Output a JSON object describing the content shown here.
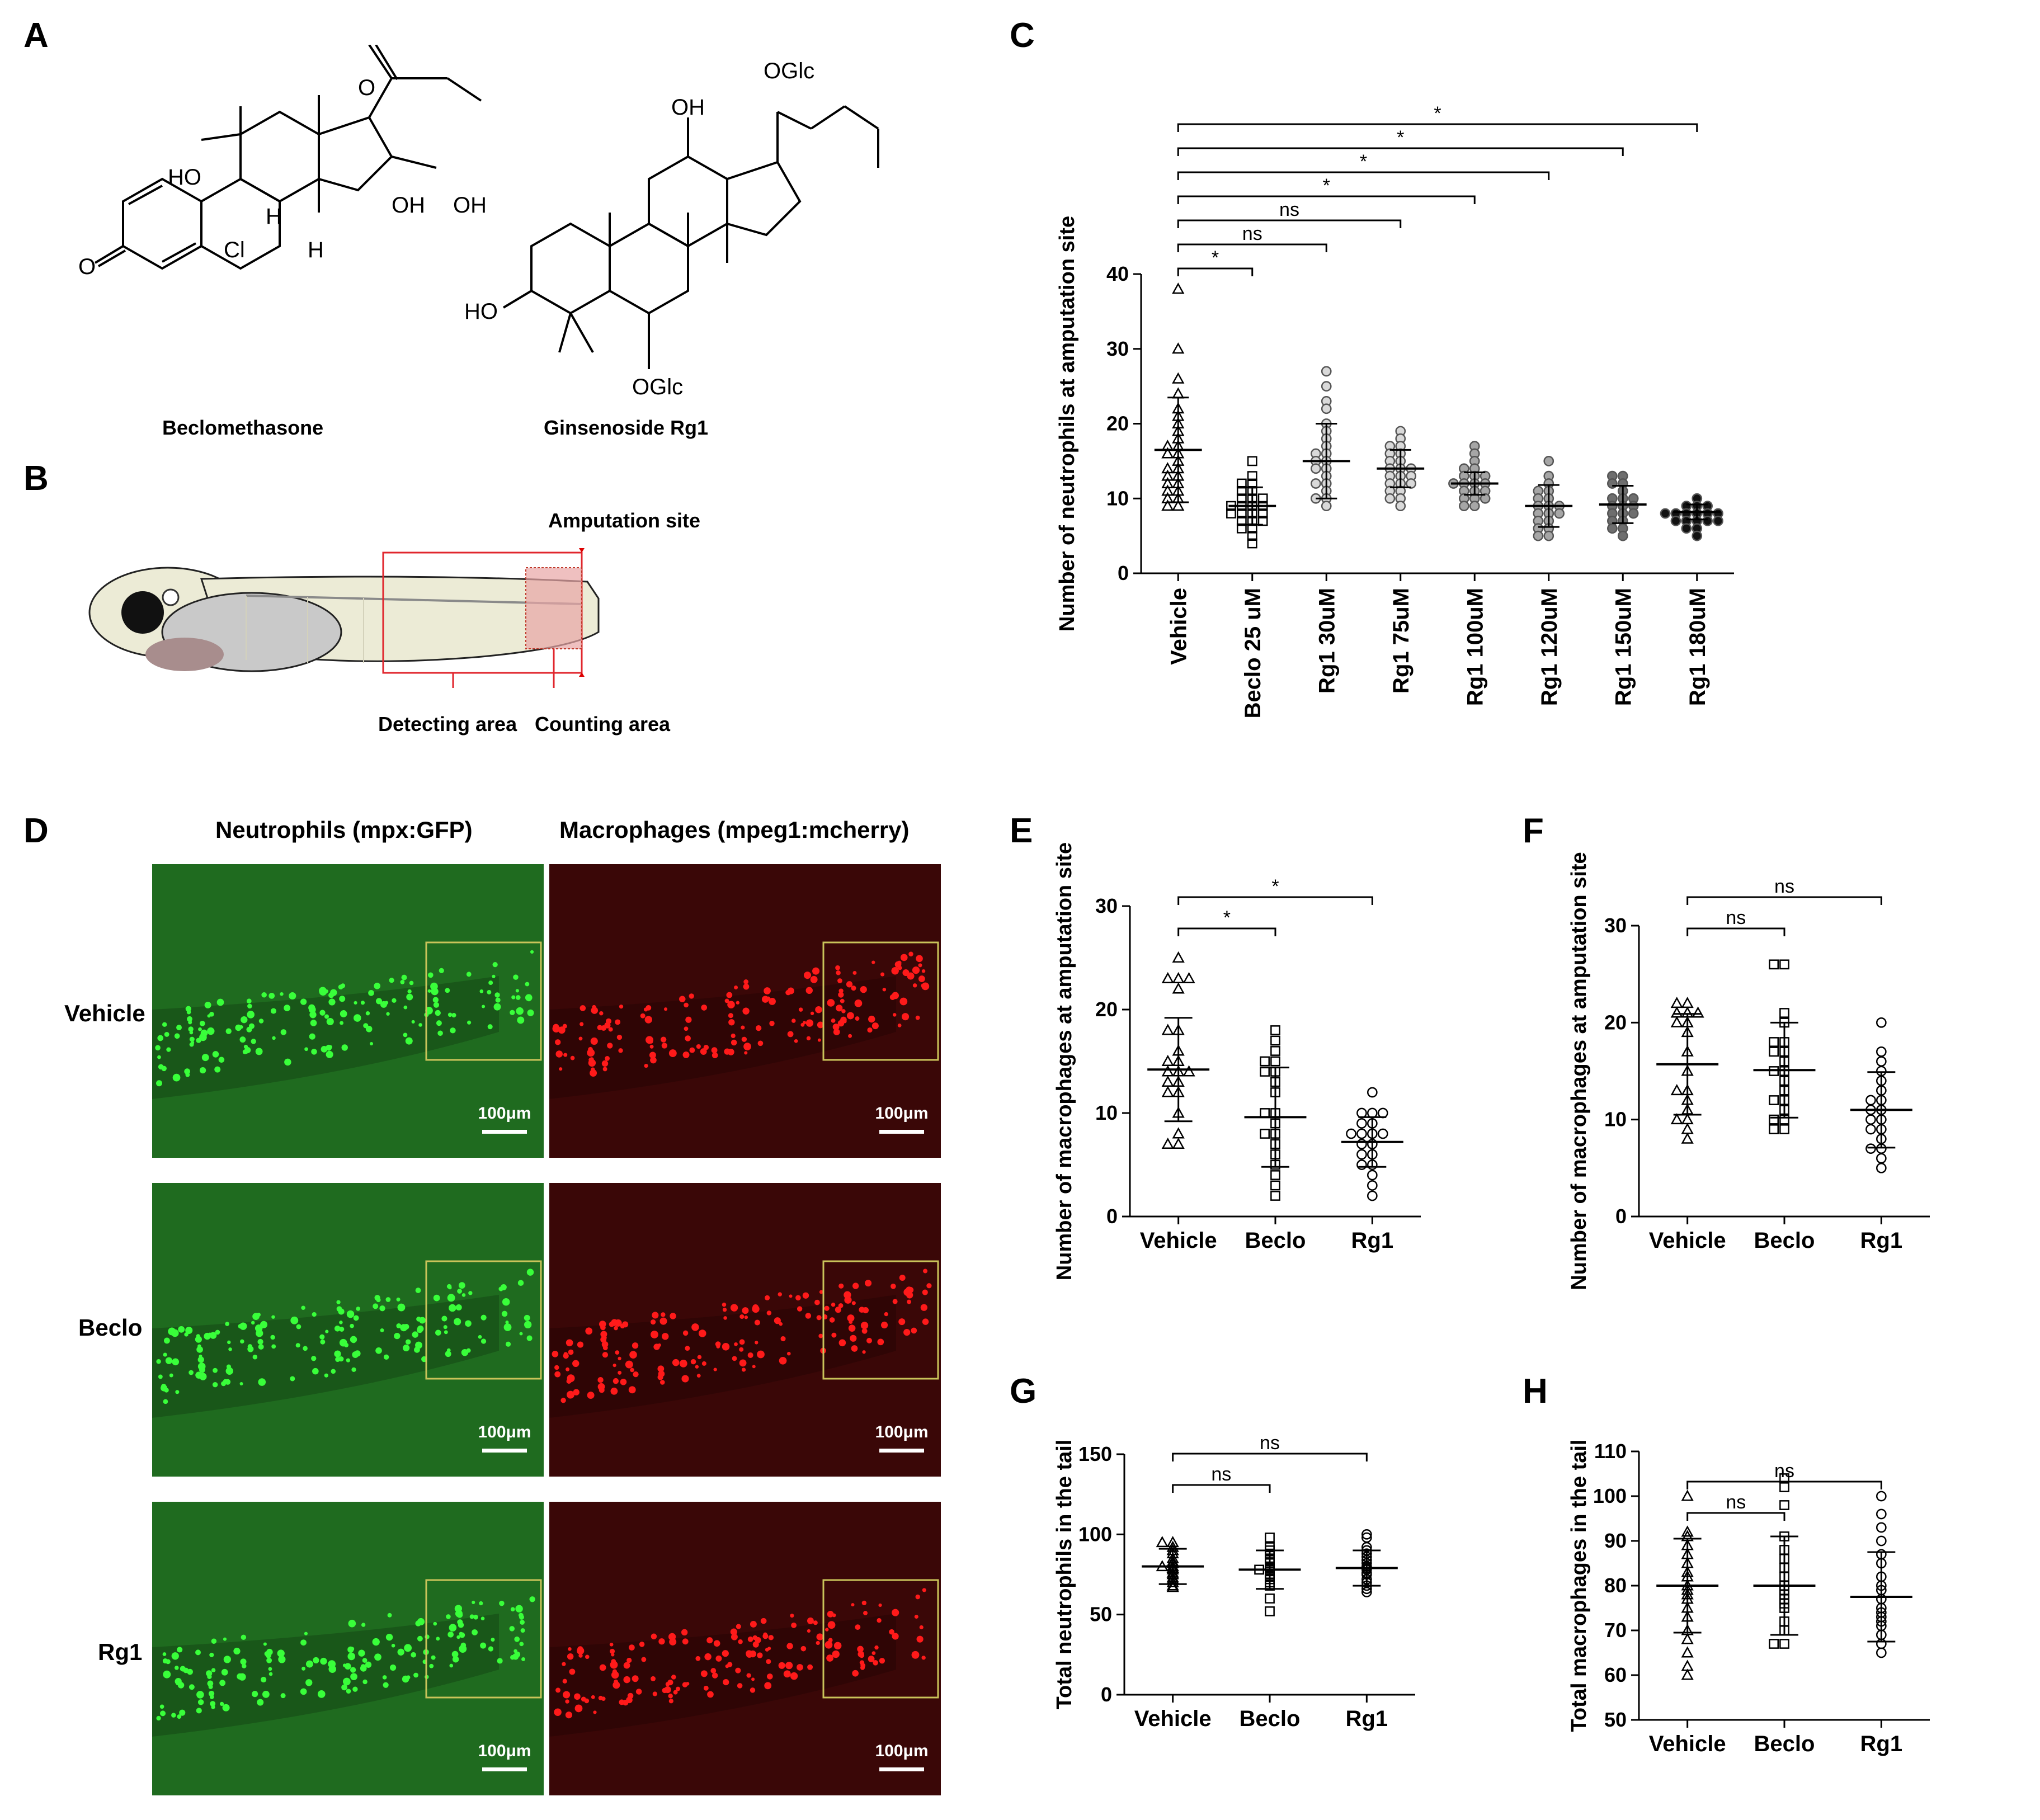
{
  "panels": {
    "A": "A",
    "B": "B",
    "C": "C",
    "D": "D",
    "E": "E",
    "F": "F",
    "G": "G",
    "H": "H"
  },
  "panel_a": {
    "compound_1": "Beclomethasone",
    "compound_2": "Ginsenoside Rg1",
    "atom_labels_1": [
      "HO",
      "OH",
      "OH",
      "O",
      "O",
      "H",
      "H",
      "Cl"
    ],
    "atom_labels_2": [
      "OGlc",
      "OH",
      "HO",
      "OGlc"
    ]
  },
  "panel_b": {
    "amputation_site": "Amputation site",
    "detecting_area": "Detecting area",
    "counting_area": "Counting area"
  },
  "panel_d": {
    "header_green": "Neutrophils (mpx:GFP)",
    "header_red": "Macrophages (mpeg1:mcherry)",
    "rows": [
      "Vehicle",
      "Beclo",
      "Rg1"
    ],
    "scale_bar": "100μm",
    "colors": {
      "green_bg": "#1f6b1f",
      "red_bg": "#3a0707",
      "box": "#c9c35a"
    }
  },
  "chart_data": [
    {
      "panel": "C",
      "type": "scatter",
      "ylabel": "Number of neutrophils at amputation site",
      "ylim": [
        0,
        40
      ],
      "yticks": [
        0,
        10,
        20,
        30,
        40
      ],
      "categories": [
        "Vehicle",
        "Beclo 25 uM",
        "Rg1 30uM",
        "Rg1 75uM",
        "Rg1 100uM",
        "Rg1 120uM",
        "Rg1 150uM",
        "Rg1 180uM"
      ],
      "marker_styles": [
        "triangle-open",
        "square-open",
        "circle-lightgray",
        "circle-lightgray",
        "circle-gray",
        "circle-gray",
        "circle-darkgray",
        "circle-black"
      ],
      "mean": [
        16.5,
        9,
        15,
        14,
        12,
        9,
        9.2,
        8.2
      ],
      "sd": [
        7,
        2.5,
        5,
        2.5,
        1.5,
        2.8,
        2.5,
        1
      ],
      "points": [
        [
          38,
          30,
          26,
          24,
          22,
          21,
          20,
          19,
          18,
          17,
          17,
          16,
          16,
          15,
          14,
          14,
          13,
          13,
          12,
          12,
          11,
          11,
          10,
          10,
          9,
          9
        ],
        [
          15,
          13,
          12,
          12,
          11,
          11,
          10,
          10,
          10,
          9,
          9,
          9,
          9,
          8,
          8,
          8,
          8,
          7,
          7,
          7,
          6,
          6,
          5,
          4
        ],
        [
          27,
          25,
          23,
          22,
          20,
          19,
          18,
          17,
          16,
          16,
          15,
          15,
          14,
          14,
          13,
          12,
          12,
          11,
          10,
          10,
          9
        ],
        [
          19,
          18,
          17,
          17,
          16,
          16,
          15,
          15,
          14,
          14,
          14,
          13,
          13,
          13,
          12,
          12,
          12,
          11,
          11,
          10,
          10,
          9
        ],
        [
          17,
          16,
          15,
          14,
          14,
          13,
          13,
          13,
          12,
          12,
          12,
          12,
          11,
          11,
          11,
          10,
          10,
          10,
          9,
          9
        ],
        [
          15,
          13,
          12,
          11,
          11,
          10,
          10,
          9,
          9,
          9,
          8,
          8,
          8,
          7,
          7,
          6,
          6,
          5,
          5
        ],
        [
          13,
          13,
          12,
          12,
          11,
          10,
          10,
          10,
          9,
          9,
          9,
          8,
          8,
          8,
          7,
          7,
          6,
          6,
          5
        ],
        [
          10,
          9,
          9,
          9,
          8,
          8,
          8,
          8,
          8,
          8,
          7,
          7,
          7,
          7,
          7,
          6,
          6,
          5
        ]
      ],
      "comparisons": [
        {
          "from": 0,
          "to": 1,
          "label": "*"
        },
        {
          "from": 0,
          "to": 2,
          "label": "ns"
        },
        {
          "from": 0,
          "to": 3,
          "label": "ns"
        },
        {
          "from": 0,
          "to": 4,
          "label": "*"
        },
        {
          "from": 0,
          "to": 5,
          "label": "*"
        },
        {
          "from": 0,
          "to": 6,
          "label": "*"
        },
        {
          "from": 0,
          "to": 7,
          "label": "*"
        }
      ]
    },
    {
      "panel": "E",
      "type": "scatter",
      "ylabel": "Number of macrophages at amputation site",
      "ylim": [
        0,
        30
      ],
      "yticks": [
        0,
        10,
        20,
        30
      ],
      "categories": [
        "Vehicle",
        "Beclo",
        "Rg1"
      ],
      "marker_styles": [
        "triangle-open",
        "square-open",
        "circle-open"
      ],
      "mean": [
        14.2,
        9.6,
        7.2
      ],
      "sd": [
        5,
        4.8,
        2.4
      ],
      "points": [
        [
          25,
          23,
          23,
          23,
          22,
          18,
          18,
          16,
          15,
          15,
          14,
          14,
          14,
          13,
          13,
          12,
          12,
          10,
          8,
          7,
          7
        ],
        [
          18,
          17,
          16,
          15,
          15,
          14,
          14,
          13,
          12,
          10,
          10,
          9,
          8,
          8,
          7,
          6,
          5,
          4,
          3,
          2
        ],
        [
          12,
          10,
          10,
          10,
          9,
          9,
          8,
          8,
          8,
          8,
          7,
          7,
          6,
          6,
          5,
          5,
          4,
          3,
          2
        ]
      ],
      "comparisons": [
        {
          "from": 0,
          "to": 1,
          "label": "*"
        },
        {
          "from": 0,
          "to": 2,
          "label": "*"
        }
      ]
    },
    {
      "panel": "F",
      "type": "scatter",
      "ylabel": "Number of macrophages at amputation site",
      "ylim": [
        0,
        30
      ],
      "yticks": [
        0,
        10,
        20,
        30
      ],
      "categories": [
        "Vehicle",
        "Beclo",
        "Rg1"
      ],
      "marker_styles": [
        "triangle-open",
        "square-open",
        "circle-open"
      ],
      "mean": [
        15.7,
        15.1,
        11
      ],
      "sd": [
        5.2,
        4.9,
        3.9
      ],
      "points": [
        [
          22,
          22,
          21,
          21,
          21,
          20,
          20,
          19,
          17,
          15,
          13,
          13,
          12,
          11,
          10,
          10,
          9,
          8
        ],
        [
          26,
          26,
          21,
          20,
          18,
          18,
          17,
          17,
          16,
          15,
          15,
          14,
          13,
          12,
          12,
          11,
          10,
          10,
          9,
          9
        ],
        [
          20,
          17,
          16,
          15,
          14,
          13,
          12,
          12,
          11,
          11,
          10,
          10,
          9,
          9,
          8,
          7,
          7,
          6,
          5
        ]
      ],
      "comparisons": [
        {
          "from": 0,
          "to": 1,
          "label": "ns"
        },
        {
          "from": 0,
          "to": 2,
          "label": "ns"
        }
      ]
    },
    {
      "panel": "G",
      "type": "scatter",
      "ylabel": "Total neutrophils in the tail",
      "ylim": [
        0,
        150
      ],
      "yticks": [
        0,
        50,
        100,
        150
      ],
      "categories": [
        "Vehicle",
        "Beclo",
        "Rg1"
      ],
      "marker_styles": [
        "triangle-open",
        "square-open",
        "circle-open"
      ],
      "mean": [
        80,
        78,
        79
      ],
      "sd": [
        11,
        12,
        11
      ],
      "points": [
        [
          95,
          95,
          92,
          90,
          88,
          85,
          83,
          82,
          80,
          80,
          79,
          78,
          76,
          75,
          73,
          72,
          70,
          68,
          67
        ],
        [
          98,
          92,
          90,
          88,
          85,
          84,
          82,
          80,
          79,
          78,
          78,
          77,
          75,
          74,
          72,
          70,
          68,
          60,
          52
        ],
        [
          100,
          98,
          92,
          90,
          88,
          86,
          84,
          82,
          80,
          79,
          78,
          76,
          75,
          72,
          70,
          68,
          66,
          64
        ]
      ],
      "comparisons": [
        {
          "from": 0,
          "to": 1,
          "label": "ns"
        },
        {
          "from": 0,
          "to": 2,
          "label": "ns"
        }
      ]
    },
    {
      "panel": "H",
      "type": "scatter",
      "ylabel": "Total macrophages in the tail",
      "ylim": [
        50,
        110
      ],
      "yticks": [
        50,
        60,
        70,
        80,
        90,
        100,
        110
      ],
      "categories": [
        "Vehicle",
        "Beclo",
        "Rg1"
      ],
      "marker_styles": [
        "triangle-open",
        "square-open",
        "circle-open"
      ],
      "mean": [
        80,
        80,
        77.5
      ],
      "sd": [
        10.5,
        11,
        10
      ],
      "points": [
        [
          100,
          92,
          91,
          89,
          87,
          85,
          83,
          82,
          80,
          79,
          78,
          77,
          75,
          73,
          70,
          68,
          65,
          62,
          60
        ],
        [
          104,
          102,
          98,
          91,
          88,
          86,
          84,
          82,
          80,
          79,
          78,
          77,
          76,
          75,
          72,
          70,
          67,
          67
        ],
        [
          100,
          96,
          93,
          90,
          87,
          85,
          82,
          80,
          79,
          77,
          75,
          74,
          73,
          72,
          71,
          69,
          67,
          65
        ]
      ],
      "comparisons": [
        {
          "from": 0,
          "to": 1,
          "label": "ns"
        },
        {
          "from": 0,
          "to": 2,
          "label": "ns"
        }
      ]
    }
  ]
}
